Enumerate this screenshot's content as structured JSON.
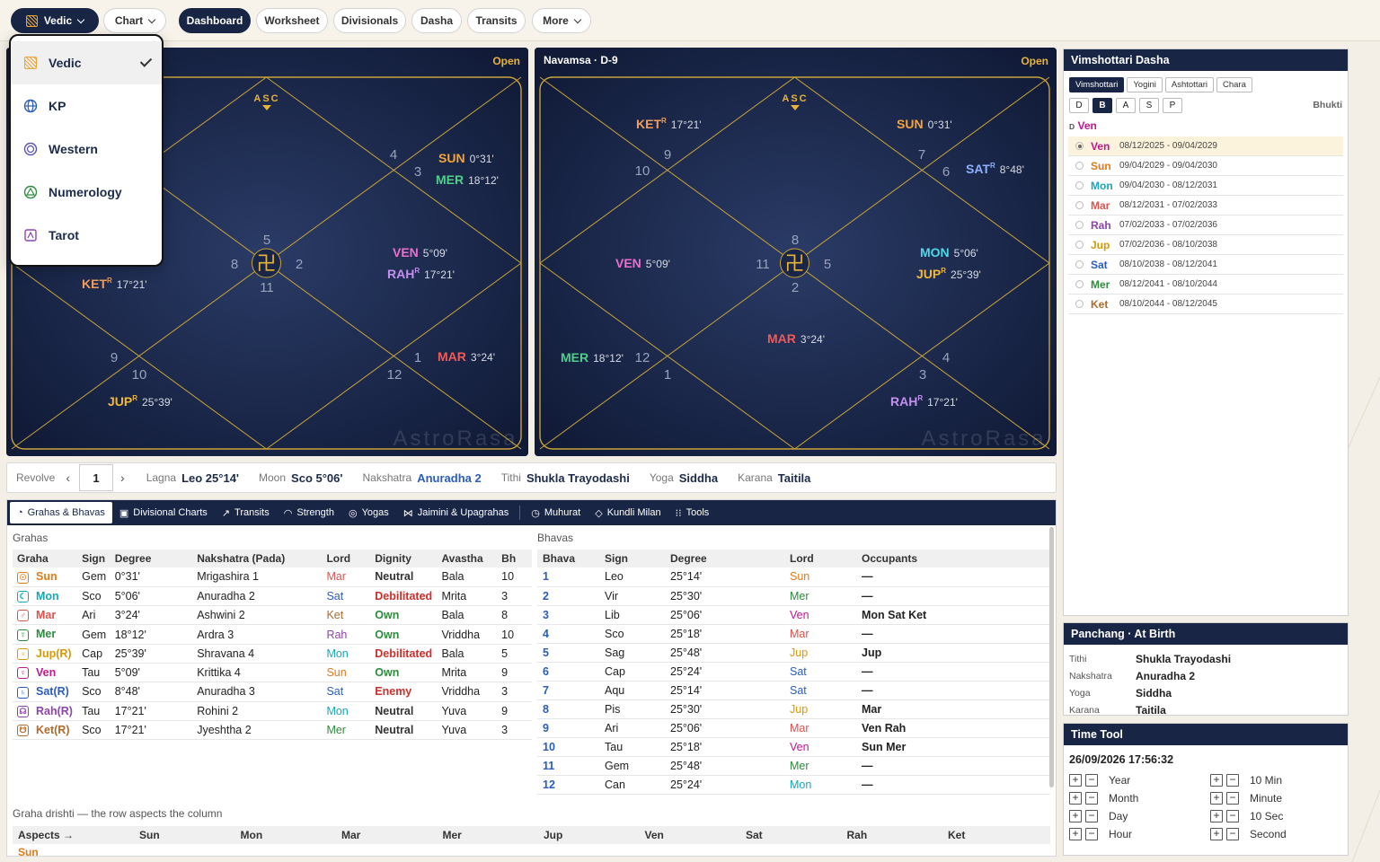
{
  "topbar": {
    "system_label": "Vedic",
    "chart_label": "Chart",
    "tabs": [
      {
        "label": "Dashboard",
        "active": true
      },
      {
        "label": "Worksheet"
      },
      {
        "label": "Divisionals"
      },
      {
        "label": "Dasha"
      },
      {
        "label": "Transits"
      },
      {
        "label": "More"
      }
    ]
  },
  "dropdown": {
    "items": [
      {
        "label": "Vedic",
        "icon": "grid-icon",
        "selected": true
      },
      {
        "label": "KP",
        "icon": "globe-icon"
      },
      {
        "label": "Western",
        "icon": "zodiac-wheel-icon"
      },
      {
        "label": "Numerology",
        "icon": "numerology-icon"
      },
      {
        "label": "Tarot",
        "icon": "tarot-card-icon"
      }
    ]
  },
  "charts": {
    "rasi": {
      "title": "",
      "open_label": "Open",
      "asc_label": "ASC",
      "watermark": "AstroRasa",
      "house_numbers": [
        "5",
        "4",
        "3",
        "2",
        "1",
        "12",
        "11",
        "10",
        "9",
        "8"
      ],
      "planets": [
        {
          "name": "SUN",
          "retro": "",
          "deg": "0°31'",
          "color": "#f5a33b"
        },
        {
          "name": "MER",
          "retro": "",
          "deg": "18°12'",
          "color": "#4fcf8b"
        },
        {
          "name": "VEN",
          "retro": "",
          "deg": "5°09'",
          "color": "#ec6fd0"
        },
        {
          "name": "RAH",
          "retro": "R",
          "deg": "17°21'",
          "color": "#c58ff0"
        },
        {
          "name": "MAR",
          "retro": "",
          "deg": "3°24'",
          "color": "#f05a5a"
        },
        {
          "name": "JUP",
          "retro": "R",
          "deg": "25°39'",
          "color": "#f2b83a"
        },
        {
          "name": "KET",
          "retro": "R",
          "deg": "17°21'",
          "color": "#f29d5b"
        }
      ]
    },
    "navamsa": {
      "title": "Navamsa · D-9",
      "open_label": "Open",
      "asc_label": "ASC",
      "watermark": "AstroRasa",
      "house_numbers": [
        "8",
        "7",
        "6",
        "5",
        "4",
        "3",
        "2",
        "1",
        "12",
        "11",
        "10",
        "9"
      ],
      "planets": [
        {
          "name": "KET",
          "retro": "R",
          "deg": "17°21'",
          "color": "#f29d5b"
        },
        {
          "name": "SUN",
          "retro": "",
          "deg": "0°31'",
          "color": "#f5a33b"
        },
        {
          "name": "SAT",
          "retro": "R",
          "deg": "8°48'",
          "color": "#8fb0ff"
        },
        {
          "name": "VEN",
          "retro": "",
          "deg": "5°09'",
          "color": "#ec6fd0"
        },
        {
          "name": "MON",
          "retro": "",
          "deg": "5°06'",
          "color": "#4fd8e6"
        },
        {
          "name": "JUP",
          "retro": "R",
          "deg": "25°39'",
          "color": "#f2b83a"
        },
        {
          "name": "MAR",
          "retro": "",
          "deg": "3°24'",
          "color": "#f05a5a"
        },
        {
          "name": "MER",
          "retro": "",
          "deg": "18°12'",
          "color": "#4fcf8b"
        },
        {
          "name": "RAH",
          "retro": "R",
          "deg": "17°21'",
          "color": "#c58ff0"
        }
      ]
    }
  },
  "revolve": {
    "label": "Revolve",
    "value": "1",
    "items": [
      {
        "label": "Lagna",
        "value": "Leo  25°14'"
      },
      {
        "label": "Moon",
        "value": "Sco  5°06'"
      },
      {
        "label": "Nakshatra",
        "value": "Anuradha 2",
        "color": "#2a5dbd"
      },
      {
        "label": "Tithi",
        "value": "Shukla Trayodashi"
      },
      {
        "label": "Yoga",
        "value": "Siddha"
      },
      {
        "label": "Karana",
        "value": "Taitila"
      }
    ]
  },
  "tabs": [
    {
      "label": "Grahas & Bhavas",
      "icon": "grahas-icon",
      "active": true
    },
    {
      "label": "Divisional Charts",
      "icon": "divisional-icon"
    },
    {
      "label": "Transits",
      "icon": "transit-icon"
    },
    {
      "label": "Strength",
      "icon": "strength-icon"
    },
    {
      "label": "Yogas",
      "icon": "yoga-icon"
    },
    {
      "label": "Jaimini & Upagrahas",
      "icon": "jaimini-icon"
    },
    {
      "label": "Muhurat",
      "icon": "clock-icon"
    },
    {
      "label": "Kundli Milan",
      "icon": "kundli-icon"
    },
    {
      "label": "Tools",
      "icon": "tools-icon"
    }
  ],
  "grahas": {
    "title": "Grahas",
    "headers": [
      "Graha",
      "Sign",
      "Degree",
      "Nakshatra (Pada)",
      "Lord",
      "Dignity",
      "Avastha",
      "Bh"
    ],
    "rows": [
      {
        "symbol": "☉",
        "graha": "Sun",
        "color": "#e07b1a",
        "sign": "Gem",
        "degree": "0°31'",
        "nak": "Mrigashira  1",
        "lord": "Mar",
        "lordColor": "#d9534f",
        "dignity": "Neutral",
        "dignityColor": "#333",
        "avastha": "Bala",
        "bh": "10"
      },
      {
        "symbol": "☾",
        "graha": "Mon",
        "color": "#1aa6b7",
        "sign": "Sco",
        "degree": "5°06'",
        "nak": "Anuradha  2",
        "lord": "Sat",
        "lordColor": "#2a5dbd",
        "dignity": "Debilitated",
        "dignityColor": "#c9302c",
        "avastha": "Mrita",
        "bh": "3"
      },
      {
        "symbol": "♂",
        "graha": "Mar",
        "color": "#d9534f",
        "sign": "Ari",
        "degree": "3°24'",
        "nak": "Ashwini  2",
        "lord": "Ket",
        "lordColor": "#b06a2c",
        "dignity": "Own",
        "dignityColor": "#2e8b3e",
        "avastha": "Bala",
        "bh": "8"
      },
      {
        "symbol": "☿",
        "graha": "Mer",
        "color": "#2e8b3e",
        "sign": "Gem",
        "degree": "18°12'",
        "nak": "Ardra  3",
        "lord": "Rah",
        "lordColor": "#8e44ad",
        "dignity": "Own",
        "dignityColor": "#2e8b3e",
        "avastha": "Vriddha",
        "bh": "10"
      },
      {
        "symbol": "♃",
        "graha": "Jup(R)",
        "color": "#d49a0a",
        "sign": "Cap",
        "degree": "25°39'",
        "nak": "Shravana  4",
        "lord": "Mon",
        "lordColor": "#1aa6b7",
        "dignity": "Debilitated",
        "dignityColor": "#c9302c",
        "avastha": "Bala",
        "bh": "5"
      },
      {
        "symbol": "♀",
        "graha": "Ven",
        "color": "#c2188f",
        "sign": "Tau",
        "degree": "5°09'",
        "nak": "Krittika  4",
        "lord": "Sun",
        "lordColor": "#e07b1a",
        "dignity": "Own",
        "dignityColor": "#2e8b3e",
        "avastha": "Mrita",
        "bh": "9"
      },
      {
        "symbol": "♄",
        "graha": "Sat(R)",
        "color": "#2a5dbd",
        "sign": "Sco",
        "degree": "8°48'",
        "nak": "Anuradha  3",
        "lord": "Sat",
        "lordColor": "#2a5dbd",
        "dignity": "Enemy",
        "dignityColor": "#c9302c",
        "avastha": "Vriddha",
        "bh": "3"
      },
      {
        "symbol": "☊",
        "graha": "Rah(R)",
        "color": "#8e44ad",
        "sign": "Tau",
        "degree": "17°21'",
        "nak": "Rohini  2",
        "lord": "Mon",
        "lordColor": "#1aa6b7",
        "dignity": "Neutral",
        "dignityColor": "#333",
        "avastha": "Yuva",
        "bh": "9"
      },
      {
        "symbol": "☋",
        "graha": "Ket(R)",
        "color": "#b06a2c",
        "sign": "Sco",
        "degree": "17°21'",
        "nak": "Jyeshtha  2",
        "lord": "Mer",
        "lordColor": "#2e8b3e",
        "dignity": "Neutral",
        "dignityColor": "#333",
        "avastha": "Yuva",
        "bh": "3"
      }
    ]
  },
  "bhavas": {
    "title": "Bhavas",
    "headers": [
      "Bhava",
      "Sign",
      "Degree",
      "Lord",
      "Occupants"
    ],
    "rows": [
      {
        "n": "1",
        "sign": "Leo",
        "degree": "25°14'",
        "lord": "Sun",
        "lordColor": "#e07b1a",
        "occ": "—"
      },
      {
        "n": "2",
        "sign": "Vir",
        "degree": "25°30'",
        "lord": "Mer",
        "lordColor": "#2e8b3e",
        "occ": "—"
      },
      {
        "n": "3",
        "sign": "Lib",
        "degree": "25°06'",
        "lord": "Ven",
        "lordColor": "#c2188f",
        "occ": "Mon Sat Ket"
      },
      {
        "n": "4",
        "sign": "Sco",
        "degree": "25°18'",
        "lord": "Mar",
        "lordColor": "#d9534f",
        "occ": "—"
      },
      {
        "n": "5",
        "sign": "Sag",
        "degree": "25°48'",
        "lord": "Jup",
        "lordColor": "#d49a0a",
        "occ": "Jup"
      },
      {
        "n": "6",
        "sign": "Cap",
        "degree": "25°24'",
        "lord": "Sat",
        "lordColor": "#2a5dbd",
        "occ": "—"
      },
      {
        "n": "7",
        "sign": "Aqu",
        "degree": "25°14'",
        "lord": "Sat",
        "lordColor": "#2a5dbd",
        "occ": "—"
      },
      {
        "n": "8",
        "sign": "Pis",
        "degree": "25°30'",
        "lord": "Jup",
        "lordColor": "#d49a0a",
        "occ": "Mar"
      },
      {
        "n": "9",
        "sign": "Ari",
        "degree": "25°06'",
        "lord": "Mar",
        "lordColor": "#d9534f",
        "occ": "Ven Rah"
      },
      {
        "n": "10",
        "sign": "Tau",
        "degree": "25°18'",
        "lord": "Ven",
        "lordColor": "#c2188f",
        "occ": "Sun Mer"
      },
      {
        "n": "11",
        "sign": "Gem",
        "degree": "25°48'",
        "lord": "Mer",
        "lordColor": "#2e8b3e",
        "occ": "—"
      },
      {
        "n": "12",
        "sign": "Can",
        "degree": "25°24'",
        "lord": "Mon",
        "lordColor": "#1aa6b7",
        "occ": "—"
      }
    ]
  },
  "aspects": {
    "title": "Graha drishti — the row aspects the column",
    "corner": "Aspects →",
    "columns": [
      "Sun",
      "Mon",
      "Mar",
      "Mer",
      "Jup",
      "Ven",
      "Sat",
      "Rah",
      "Ket"
    ],
    "first_row": "Sun"
  },
  "dasha": {
    "title": "Vimshottari Dasha",
    "systems": [
      "Vimshottari",
      "Yogini",
      "Ashtottari",
      "Chara"
    ],
    "levels": [
      "D",
      "B",
      "A",
      "S",
      "P"
    ],
    "level_caption": "Bhukti",
    "crumb_prefix": "D",
    "crumb": "Ven",
    "rows": [
      {
        "planet": "Ven",
        "color": "#c2188f",
        "dates": "08/12/2025 - 09/04/2029",
        "active": true
      },
      {
        "planet": "Sun",
        "color": "#e07b1a",
        "dates": "09/04/2029 - 09/04/2030"
      },
      {
        "planet": "Mon",
        "color": "#1aa6b7",
        "dates": "09/04/2030 - 08/12/2031"
      },
      {
        "planet": "Mar",
        "color": "#d9534f",
        "dates": "08/12/2031 - 07/02/2033"
      },
      {
        "planet": "Rah",
        "color": "#8e44ad",
        "dates": "07/02/2033 - 07/02/2036"
      },
      {
        "planet": "Jup",
        "color": "#d49a0a",
        "dates": "07/02/2036 - 08/10/2038"
      },
      {
        "planet": "Sat",
        "color": "#2a5dbd",
        "dates": "08/10/2038 - 08/12/2041"
      },
      {
        "planet": "Mer",
        "color": "#2e8b3e",
        "dates": "08/12/2041 - 08/10/2044"
      },
      {
        "planet": "Ket",
        "color": "#b06a2c",
        "dates": "08/10/2044 - 08/12/2045"
      }
    ]
  },
  "panchang": {
    "title": "Panchang · At Birth",
    "rows": [
      {
        "label": "Tithi",
        "value": "Shukla Trayodashi"
      },
      {
        "label": "Nakshatra",
        "value": "Anuradha  2"
      },
      {
        "label": "Yoga",
        "value": "Siddha"
      },
      {
        "label": "Karana",
        "value": "Taitila"
      }
    ]
  },
  "timetool": {
    "title": "Time Tool",
    "datetime": "26/09/2026  17:56:32",
    "left": [
      "Year",
      "Month",
      "Day",
      "Hour"
    ],
    "right": [
      "10 Min",
      "Minute",
      "10 Sec",
      "Second"
    ],
    "plus": "+",
    "minus": "−"
  }
}
